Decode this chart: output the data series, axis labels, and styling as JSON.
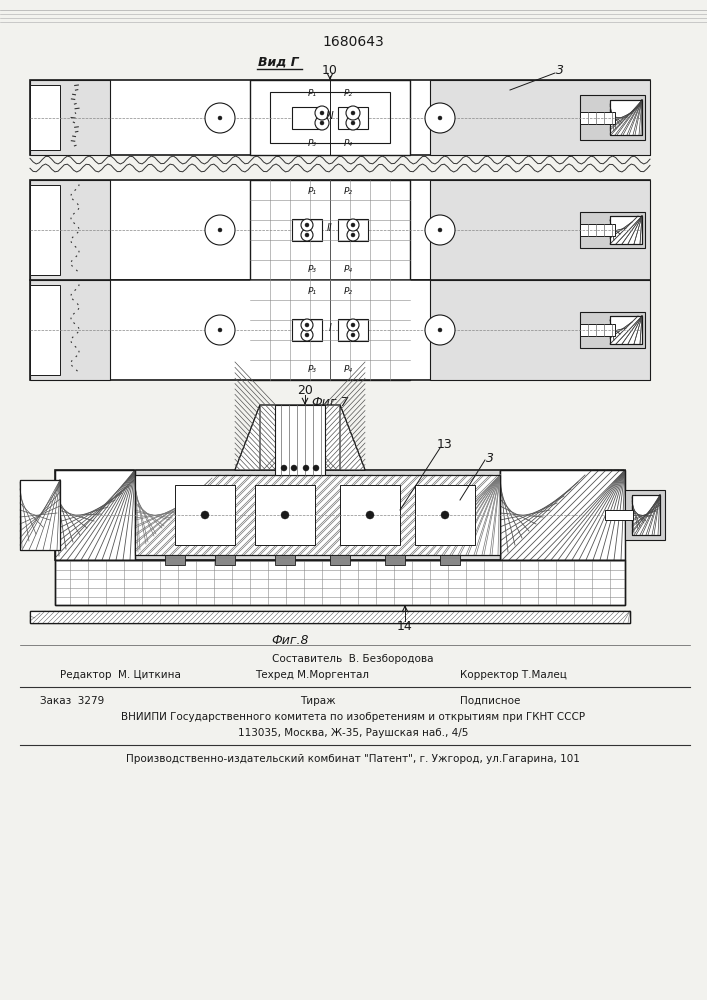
{
  "patent_number": "1680643",
  "vid_label": "Вид Г",
  "fig7_label": "Фиг.7",
  "fig8_label": "Фиг.8",
  "footer": {
    "sestavitel": "Составитель  В. Безбородова",
    "redaktor": "Редактор  М. Циткина",
    "tehred": "Техред М.Моргентал",
    "korrektor": "Корректор Т.Малец",
    "zakaz": "Заказ  3279",
    "tirazh": "Тираж",
    "podpisnoe": "Подписное",
    "vnipi1": "ВНИИПИ Государственного комитета по изобретениям и открытиям при ГКНТ СССР",
    "vnipi2": "113035, Москва, Ж-35, Раушская наб., 4/5",
    "zavod": "Производственно-издательский комбинат \"Патент\", г. Ужгород, ул.Гагарина, 101"
  },
  "bg_color": "#f2f2ee",
  "line_color": "#1a1a1a",
  "labels": {
    "num3": "3",
    "num10": "10",
    "num20": "20",
    "num13": "13",
    "num14": "14"
  }
}
